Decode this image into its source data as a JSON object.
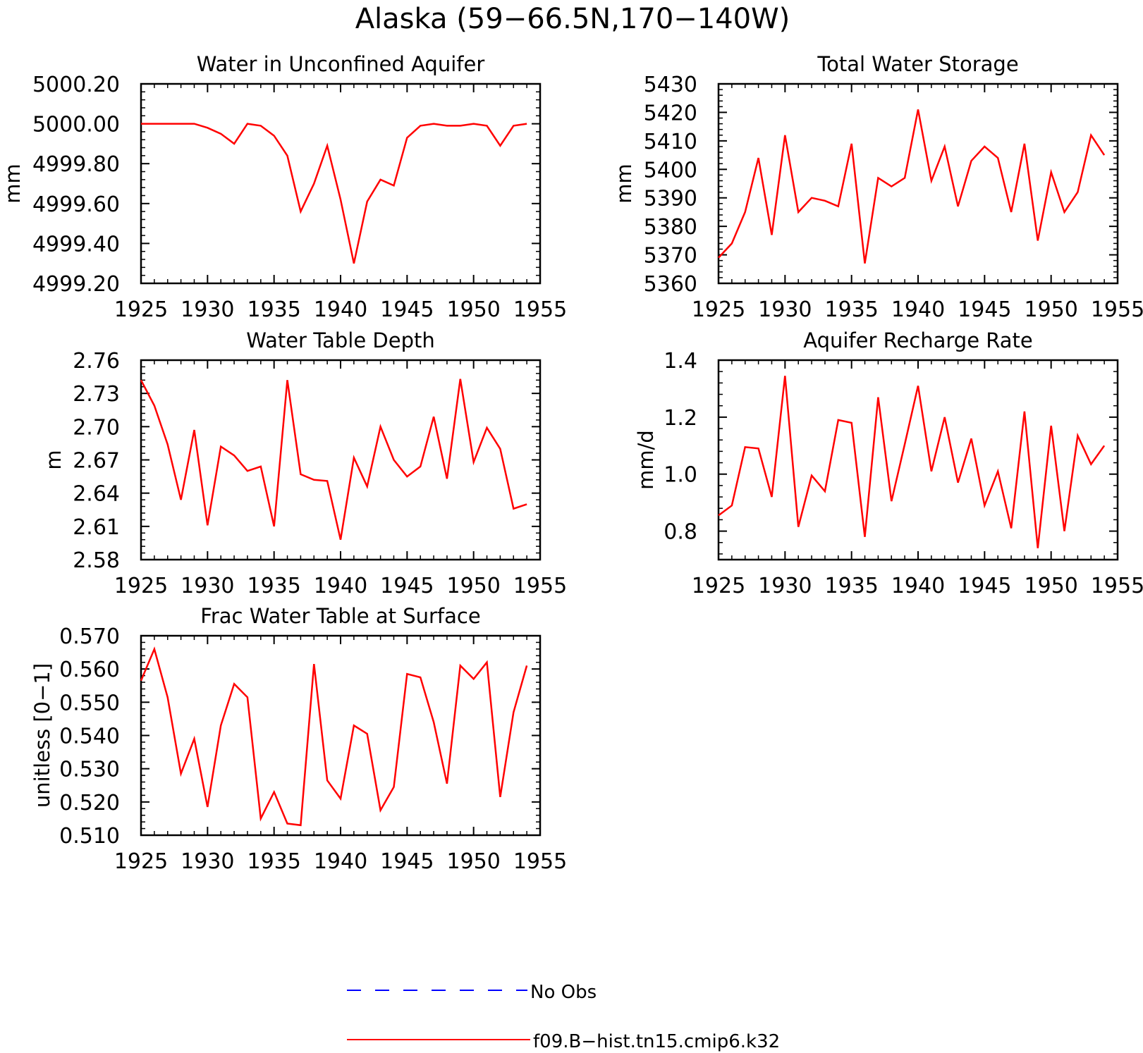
{
  "figure_title": "Alaska (59−66.5N,170−140W)",
  "colors": {
    "model": "#ff0000",
    "obs": "#0000ff",
    "axis": "#000000"
  },
  "legend": {
    "obs_label": "No Obs",
    "model_label": "f09.B−hist.tn15.cmip6.k32"
  },
  "chart_data": [
    {
      "type": "line",
      "title": "Water in Unconfined Aquifer",
      "ylabel": "mm",
      "xlim": [
        1925,
        1955
      ],
      "ylim": [
        4999.2,
        5000.2
      ],
      "xticks": [
        "1925",
        "1930",
        "1935",
        "1940",
        "1945",
        "1950",
        "1955"
      ],
      "yticks": [
        "4999.20",
        "4999.40",
        "4999.60",
        "4999.80",
        "5000.00",
        "5000.20"
      ],
      "x": [
        1925,
        1926,
        1927,
        1928,
        1929,
        1930,
        1931,
        1932,
        1933,
        1934,
        1935,
        1936,
        1937,
        1938,
        1939,
        1940,
        1941,
        1942,
        1943,
        1944,
        1945,
        1946,
        1947,
        1948,
        1949,
        1950,
        1951,
        1952,
        1953,
        1954
      ],
      "series": [
        {
          "name": "f09.B−hist.tn15.cmip6.k32",
          "values": [
            5000.0,
            5000.0,
            5000.0,
            5000.0,
            5000.0,
            4999.98,
            4999.95,
            4999.9,
            5000.0,
            4999.99,
            4999.94,
            4999.84,
            4999.56,
            4999.7,
            4999.89,
            4999.62,
            4999.3,
            4999.61,
            4999.72,
            4999.69,
            4999.93,
            4999.99,
            5000.0,
            4999.99,
            4999.99,
            5000.0,
            4999.99,
            4999.89,
            4999.99,
            5000.0
          ]
        }
      ]
    },
    {
      "type": "line",
      "title": "Total Water Storage",
      "ylabel": "mm",
      "xlim": [
        1925,
        1955
      ],
      "ylim": [
        5360,
        5430
      ],
      "xticks": [
        "1925",
        "1930",
        "1935",
        "1940",
        "1945",
        "1950",
        "1955"
      ],
      "yticks": [
        "5360",
        "5370",
        "5380",
        "5390",
        "5400",
        "5410",
        "5420",
        "5430"
      ],
      "x": [
        1925,
        1926,
        1927,
        1928,
        1929,
        1930,
        1931,
        1932,
        1933,
        1934,
        1935,
        1936,
        1937,
        1938,
        1939,
        1940,
        1941,
        1942,
        1943,
        1944,
        1945,
        1946,
        1947,
        1948,
        1949,
        1950,
        1951,
        1952,
        1953,
        1954
      ],
      "series": [
        {
          "name": "f09.B−hist.tn15.cmip6.k32",
          "values": [
            5369,
            5374,
            5385,
            5404,
            5377,
            5412,
            5385,
            5390,
            5389,
            5387,
            5409,
            5367,
            5397,
            5394,
            5397,
            5421,
            5396,
            5408,
            5387,
            5403,
            5408,
            5404,
            5385,
            5409,
            5375,
            5399,
            5385,
            5392,
            5412,
            5405
          ]
        }
      ]
    },
    {
      "type": "line",
      "title": "Water Table Depth",
      "ylabel": "m",
      "xlim": [
        1925,
        1955
      ],
      "ylim": [
        2.58,
        2.76
      ],
      "xticks": [
        "1925",
        "1930",
        "1935",
        "1940",
        "1945",
        "1950",
        "1955"
      ],
      "yticks": [
        "2.58",
        "2.61",
        "2.64",
        "2.67",
        "2.70",
        "2.73",
        "2.76"
      ],
      "x": [
        1925,
        1926,
        1927,
        1928,
        1929,
        1930,
        1931,
        1932,
        1933,
        1934,
        1935,
        1936,
        1937,
        1938,
        1939,
        1940,
        1941,
        1942,
        1943,
        1944,
        1945,
        1946,
        1947,
        1948,
        1949,
        1950,
        1951,
        1952,
        1953,
        1954
      ],
      "series": [
        {
          "name": "f09.B−hist.tn15.cmip6.k32",
          "values": [
            2.742,
            2.719,
            2.684,
            2.634,
            2.697,
            2.611,
            2.682,
            2.674,
            2.66,
            2.664,
            2.61,
            2.742,
            2.657,
            2.652,
            2.651,
            2.598,
            2.672,
            2.646,
            2.7,
            2.67,
            2.655,
            2.664,
            2.709,
            2.653,
            2.743,
            2.668,
            2.699,
            2.68,
            2.626,
            2.63
          ]
        }
      ]
    },
    {
      "type": "line",
      "title": "Aquifer Recharge Rate",
      "ylabel": "mm/d",
      "xlim": [
        1925,
        1955
      ],
      "ylim": [
        0.7,
        1.4
      ],
      "xticks": [
        "1925",
        "1930",
        "1935",
        "1940",
        "1945",
        "1950",
        "1955"
      ],
      "yticks": [
        "0.8",
        "1.0",
        "1.2",
        "1.4"
      ],
      "x": [
        1925,
        1926,
        1927,
        1928,
        1929,
        1930,
        1931,
        1932,
        1933,
        1934,
        1935,
        1936,
        1937,
        1938,
        1939,
        1940,
        1941,
        1942,
        1943,
        1944,
        1945,
        1946,
        1947,
        1948,
        1949,
        1950,
        1951,
        1952,
        1953,
        1954
      ],
      "series": [
        {
          "name": "f09.B−hist.tn15.cmip6.k32",
          "values": [
            0.855,
            0.89,
            1.095,
            1.09,
            0.92,
            1.345,
            0.815,
            0.995,
            0.94,
            1.19,
            1.18,
            0.78,
            1.27,
            0.905,
            1.105,
            1.31,
            1.01,
            1.2,
            0.97,
            1.125,
            0.89,
            1.01,
            0.81,
            1.22,
            0.74,
            1.17,
            0.8,
            1.135,
            1.035,
            1.1
          ]
        }
      ]
    },
    {
      "type": "line",
      "title": "Frac Water Table at Surface",
      "ylabel": "unitless [0−1]",
      "xlim": [
        1925,
        1955
      ],
      "ylim": [
        0.51,
        0.57
      ],
      "xticks": [
        "1925",
        "1930",
        "1935",
        "1940",
        "1945",
        "1950",
        "1955"
      ],
      "yticks": [
        "0.510",
        "0.520",
        "0.530",
        "0.540",
        "0.550",
        "0.560",
        "0.570"
      ],
      "x": [
        1925,
        1926,
        1927,
        1928,
        1929,
        1930,
        1931,
        1932,
        1933,
        1934,
        1935,
        1936,
        1937,
        1938,
        1939,
        1940,
        1941,
        1942,
        1943,
        1944,
        1945,
        1946,
        1947,
        1948,
        1949,
        1950,
        1951,
        1952,
        1953,
        1954
      ],
      "series": [
        {
          "name": "f09.B−hist.tn15.cmip6.k32",
          "values": [
            0.5565,
            0.566,
            0.5515,
            0.5285,
            0.539,
            0.5185,
            0.543,
            0.5555,
            0.5515,
            0.515,
            0.523,
            0.5135,
            0.513,
            0.5615,
            0.5265,
            0.521,
            0.543,
            0.5405,
            0.5175,
            0.5245,
            0.5585,
            0.5575,
            0.544,
            0.5255,
            0.561,
            0.557,
            0.562,
            0.5215,
            0.547,
            0.561
          ]
        }
      ]
    }
  ]
}
